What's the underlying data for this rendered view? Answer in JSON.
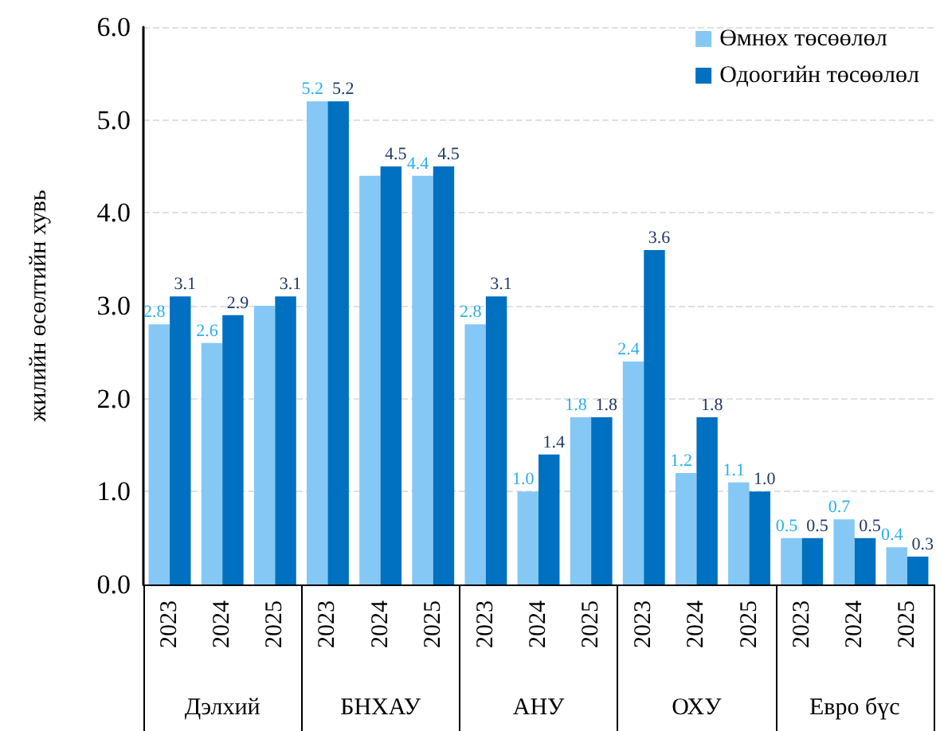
{
  "chart_data": {
    "type": "bar",
    "ylabel": "жилийн өсөлтийн хувь",
    "categories": [
      "2023",
      "2024",
      "2025",
      "2023",
      "2024",
      "2025",
      "2023",
      "2024",
      "2025",
      "2023",
      "2024",
      "2025",
      "2023",
      "2024",
      "2025"
    ],
    "series": [
      {
        "name": "Өмнөх төсөөлөл",
        "color": "#85c8f5",
        "values": [
          2.8,
          2.6,
          3.0,
          5.2,
          4.4,
          4.4,
          2.8,
          1.0,
          1.8,
          2.4,
          1.2,
          1.1,
          0.5,
          0.7,
          0.4
        ],
        "value_labels": [
          "2.8",
          "2.6",
          null,
          "5.2",
          null,
          "4.4",
          "2.8",
          "1.0",
          "1.8",
          "2.4",
          "1.2",
          "1.1",
          "0.5",
          "0.7",
          "0.4"
        ]
      },
      {
        "name": "Одоогийн төсөөлөл",
        "color": "#0070c0",
        "values": [
          3.1,
          2.9,
          3.1,
          5.2,
          4.5,
          4.5,
          3.1,
          1.4,
          1.8,
          3.6,
          1.8,
          1.0,
          0.5,
          0.5,
          0.3
        ],
        "value_labels": [
          "3.1",
          "2.9",
          "3.1",
          "5.2",
          "4.5",
          "4.5",
          "3.1",
          "1.4",
          "1.8",
          "3.6",
          "1.8",
          "1.0",
          "0.5",
          "0.5",
          "0.3"
        ]
      }
    ],
    "annotations": [
      "Дэлхий",
      "БНХАУ",
      "АНУ",
      "ОХУ",
      "Евро бүс"
    ],
    "ylim": [
      0,
      6
    ],
    "yticks": [
      {
        "value": 0,
        "label": "0.0"
      },
      {
        "value": 1,
        "label": "1.0"
      },
      {
        "value": 2,
        "label": "2.0"
      },
      {
        "value": 3,
        "label": "3.0"
      },
      {
        "value": 4,
        "label": "4.0"
      },
      {
        "value": 5,
        "label": "5.0"
      },
      {
        "value": 6,
        "label": "6.0"
      }
    ],
    "grid": "y",
    "legend": "top right"
  }
}
